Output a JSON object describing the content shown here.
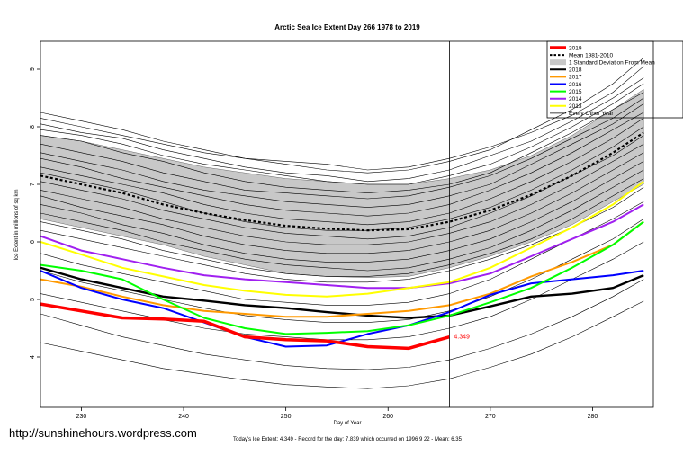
{
  "chart_data": {
    "type": "line",
    "title": "Arctic Sea Ice Extent Day 266 1978 to 2019",
    "xlabel": "Day of Year",
    "ylabel": "Ice Extent in millions of sq km",
    "xlim": [
      226,
      286
    ],
    "ylim": [
      3.4,
      9.6
    ],
    "x_ticks": [
      230,
      240,
      250,
      260,
      270,
      280
    ],
    "y_ticks": [
      4,
      5,
      6,
      7,
      8,
      9
    ],
    "grid": false,
    "legend_position": "top-right",
    "current_day": 266,
    "annotation": {
      "x": 266,
      "y": 4.349,
      "text": "4.349"
    },
    "footer": "Today's Ice Extent: 4.349  - Record for the day: 7.839 which occurred on 1996 9 22  - Mean: 6.35",
    "watermark": "http://sunshinehours.wordpress.com",
    "legend": [
      {
        "label": "2019",
        "color": "#ff0000",
        "style": "thick"
      },
      {
        "label": "Mean 1981-2010",
        "color": "#000000",
        "style": "dotted"
      },
      {
        "label": "1 Standard Deviation From Mean",
        "color": "#c8c8c8",
        "style": "band"
      },
      {
        "label": "2018",
        "color": "#000000",
        "style": "solid"
      },
      {
        "label": "2017",
        "color": "#ff9900",
        "style": "solid"
      },
      {
        "label": "2016",
        "color": "#0000ff",
        "style": "solid"
      },
      {
        "label": "2015",
        "color": "#00ff00",
        "style": "solid"
      },
      {
        "label": "2014",
        "color": "#a020f0",
        "style": "solid"
      },
      {
        "label": "2013",
        "color": "#ffff00",
        "style": "solid"
      },
      {
        "label": "Every Other Year",
        "color": "#000000",
        "style": "thin"
      }
    ],
    "x": [
      226,
      230,
      234,
      238,
      242,
      246,
      250,
      254,
      258,
      262,
      266,
      270,
      274,
      278,
      282,
      285
    ],
    "band": {
      "upper": [
        7.85,
        7.75,
        7.6,
        7.45,
        7.3,
        7.2,
        7.1,
        7.05,
        7.0,
        7.0,
        7.1,
        7.25,
        7.5,
        7.85,
        8.3,
        8.65
      ],
      "lower": [
        6.4,
        6.25,
        6.1,
        5.95,
        5.75,
        5.6,
        5.45,
        5.4,
        5.38,
        5.4,
        5.55,
        5.75,
        6.0,
        6.3,
        6.7,
        7.0
      ]
    },
    "series": [
      {
        "name": "Mean 1981-2010",
        "color": "#000000",
        "values": [
          7.15,
          7.0,
          6.85,
          6.65,
          6.5,
          6.38,
          6.28,
          6.23,
          6.2,
          6.22,
          6.35,
          6.55,
          6.82,
          7.15,
          7.55,
          7.9
        ]
      },
      {
        "name": "2018",
        "color": "#000000",
        "values": [
          5.55,
          5.35,
          5.2,
          5.05,
          4.98,
          4.9,
          4.85,
          4.78,
          4.72,
          4.68,
          4.72,
          4.88,
          5.05,
          5.1,
          5.2,
          5.42
        ]
      },
      {
        "name": "2017",
        "color": "#ff9900",
        "values": [
          5.35,
          5.22,
          5.05,
          4.9,
          4.8,
          4.75,
          4.7,
          4.7,
          4.75,
          4.8,
          4.9,
          5.1,
          5.4,
          5.65,
          5.95,
          6.35
        ]
      },
      {
        "name": "2016",
        "color": "#0000ff",
        "values": [
          5.5,
          5.2,
          5.0,
          4.85,
          4.6,
          4.35,
          4.18,
          4.2,
          4.4,
          4.55,
          4.78,
          5.08,
          5.28,
          5.35,
          5.42,
          5.5
        ]
      },
      {
        "name": "2015",
        "color": "#00ff00",
        "values": [
          5.6,
          5.5,
          5.35,
          5.0,
          4.68,
          4.5,
          4.4,
          4.42,
          4.45,
          4.55,
          4.72,
          4.95,
          5.2,
          5.55,
          5.95,
          6.35
        ]
      },
      {
        "name": "2014",
        "color": "#a020f0",
        "values": [
          6.1,
          5.85,
          5.7,
          5.55,
          5.42,
          5.35,
          5.3,
          5.25,
          5.2,
          5.2,
          5.28,
          5.45,
          5.75,
          6.05,
          6.35,
          6.65
        ]
      },
      {
        "name": "2013",
        "color": "#ffff00",
        "values": [
          6.0,
          5.78,
          5.55,
          5.4,
          5.25,
          5.15,
          5.08,
          5.05,
          5.1,
          5.2,
          5.3,
          5.55,
          5.9,
          6.25,
          6.65,
          7.05
        ]
      },
      {
        "name": "2019",
        "color": "#ff0000",
        "values": [
          4.92,
          4.8,
          4.68,
          4.66,
          4.62,
          4.35,
          4.3,
          4.28,
          4.18,
          4.15,
          4.349
        ]
      }
    ],
    "other_years": [
      [
        8.25,
        8.1,
        7.95,
        7.75,
        7.6,
        7.45,
        7.4,
        7.35,
        7.25,
        7.3,
        7.45,
        7.65,
        7.9,
        8.2,
        8.6,
        9.05
      ],
      [
        8.15,
        8.0,
        7.85,
        7.7,
        7.55,
        7.45,
        7.35,
        7.25,
        7.2,
        7.25,
        7.4,
        7.6,
        7.95,
        8.3,
        8.75,
        9.2
      ],
      [
        8.05,
        7.9,
        7.8,
        7.6,
        7.45,
        7.3,
        7.2,
        7.15,
        7.05,
        7.1,
        7.25,
        7.5,
        7.75,
        8.1,
        8.5,
        8.85
      ],
      [
        7.95,
        7.85,
        7.7,
        7.5,
        7.35,
        7.25,
        7.15,
        7.05,
        7.0,
        7.0,
        7.15,
        7.35,
        7.65,
        8.0,
        8.4,
        8.75
      ],
      [
        7.85,
        7.75,
        7.55,
        7.4,
        7.2,
        7.05,
        6.95,
        6.9,
        6.85,
        6.9,
        7.0,
        7.2,
        7.55,
        7.9,
        8.3,
        8.6
      ],
      [
        7.7,
        7.55,
        7.4,
        7.2,
        7.05,
        6.9,
        6.85,
        6.8,
        6.75,
        6.8,
        6.95,
        7.15,
        7.45,
        7.8,
        8.15,
        8.5
      ],
      [
        7.55,
        7.4,
        7.25,
        7.05,
        6.9,
        6.8,
        6.7,
        6.65,
        6.6,
        6.65,
        6.8,
        7.0,
        7.35,
        7.7,
        8.05,
        8.4
      ],
      [
        7.45,
        7.3,
        7.1,
        6.95,
        6.8,
        6.65,
        6.55,
        6.5,
        6.45,
        6.5,
        6.65,
        6.9,
        7.2,
        7.55,
        7.95,
        8.25
      ],
      [
        7.3,
        7.15,
        7.0,
        6.85,
        6.65,
        6.5,
        6.4,
        6.35,
        6.3,
        6.35,
        6.5,
        6.75,
        7.05,
        7.4,
        7.8,
        8.15
      ],
      [
        7.2,
        7.05,
        6.9,
        6.7,
        6.5,
        6.35,
        6.25,
        6.2,
        6.2,
        6.25,
        6.4,
        6.6,
        6.9,
        7.25,
        7.65,
        8.0
      ],
      [
        7.05,
        6.9,
        6.75,
        6.55,
        6.4,
        6.25,
        6.15,
        6.1,
        6.05,
        6.1,
        6.25,
        6.5,
        6.8,
        7.15,
        7.5,
        7.85
      ],
      [
        6.9,
        6.75,
        6.6,
        6.4,
        6.25,
        6.1,
        6.0,
        5.95,
        5.95,
        6.0,
        6.15,
        6.35,
        6.65,
        7.0,
        7.4,
        7.7
      ],
      [
        6.8,
        6.6,
        6.45,
        6.3,
        6.1,
        5.95,
        5.85,
        5.8,
        5.8,
        5.85,
        6.0,
        6.2,
        6.5,
        6.85,
        7.25,
        7.55
      ],
      [
        6.65,
        6.5,
        6.3,
        6.15,
        5.95,
        5.8,
        5.7,
        5.65,
        5.65,
        5.7,
        5.85,
        6.05,
        6.35,
        6.7,
        7.1,
        7.4
      ],
      [
        6.5,
        6.35,
        6.2,
        6.0,
        5.85,
        5.7,
        5.6,
        5.55,
        5.5,
        5.55,
        5.7,
        5.9,
        6.2,
        6.55,
        6.95,
        7.25
      ],
      [
        6.35,
        6.2,
        6.05,
        5.85,
        5.7,
        5.55,
        5.45,
        5.4,
        5.4,
        5.45,
        5.6,
        5.8,
        6.05,
        6.4,
        6.8,
        7.1
      ],
      [
        6.2,
        6.05,
        5.9,
        5.75,
        5.6,
        5.45,
        5.35,
        5.3,
        5.3,
        5.35,
        5.5,
        5.7,
        5.95,
        6.25,
        6.6,
        6.95
      ],
      [
        5.8,
        5.6,
        5.45,
        5.3,
        5.15,
        5.0,
        4.95,
        4.9,
        4.9,
        4.95,
        5.1,
        5.35,
        5.7,
        6.05,
        6.4,
        6.7
      ],
      [
        5.5,
        5.3,
        5.15,
        5.0,
        4.85,
        4.72,
        4.65,
        4.6,
        4.6,
        4.65,
        4.8,
        5.05,
        5.35,
        5.7,
        6.05,
        6.4
      ],
      [
        5.1,
        4.95,
        4.8,
        4.65,
        4.5,
        4.4,
        4.35,
        4.3,
        4.3,
        4.35,
        4.5,
        4.7,
        5.0,
        5.35,
        5.7,
        6.0
      ],
      [
        4.75,
        4.55,
        4.35,
        4.2,
        4.05,
        3.95,
        3.85,
        3.8,
        3.78,
        3.82,
        3.95,
        4.15,
        4.4,
        4.7,
        5.05,
        5.35
      ],
      [
        4.25,
        4.1,
        3.95,
        3.8,
        3.7,
        3.6,
        3.52,
        3.48,
        3.45,
        3.5,
        3.62,
        3.82,
        4.05,
        4.35,
        4.7,
        4.97
      ]
    ]
  }
}
